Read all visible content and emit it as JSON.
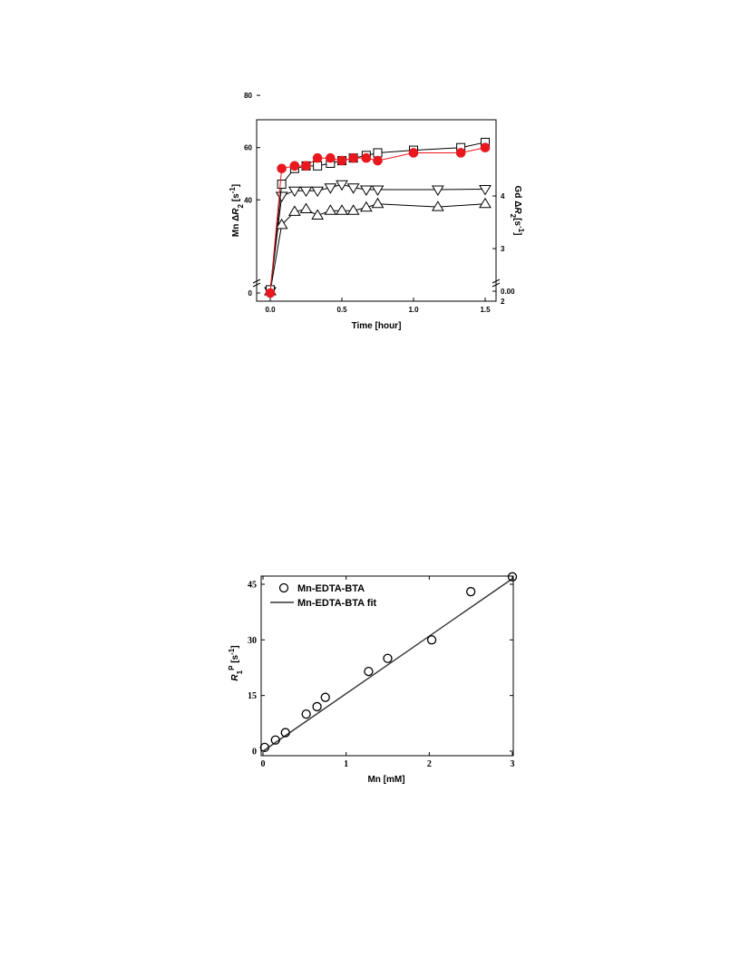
{
  "chart_data": [
    {
      "type": "line",
      "xlabel": "Time [hour]",
      "ylabel": "Mn ΔR2 [s-1]",
      "ylabel_parts": [
        "Mn Δ",
        "R",
        "2",
        " [s",
        "-1",
        "]"
      ],
      "y2label": "Gd ΔR2 [s-1]",
      "y2label_parts": [
        "Gd Δ",
        "R",
        "2",
        "[s",
        "-1",
        "]"
      ],
      "x_ticks": [
        "0.0",
        "0.5",
        "1.0",
        "1.5"
      ],
      "y_ticks": [
        "0",
        "40",
        "60",
        "80"
      ],
      "y2_ticks": [
        "0.00",
        "2",
        "3",
        "4"
      ],
      "xlim": [
        -0.1,
        1.55
      ],
      "ylim": [
        0,
        90
      ],
      "y_break": true,
      "y2lim": [
        0,
        4.5
      ],
      "y2_break": true,
      "series": [
        {
          "marker": "triangle-down",
          "axis": "y2",
          "color": "#000000",
          "x": [
            0,
            0.08,
            0.17,
            0.25,
            0.33,
            0.42,
            0.5,
            0.58,
            0.67,
            0.75,
            1.17,
            1.5
          ],
          "y": [
            0.0,
            4.0,
            4.1,
            4.1,
            4.1,
            4.16,
            4.22,
            4.16,
            4.12,
            4.12,
            4.12,
            4.13
          ]
        },
        {
          "marker": "triangle-up",
          "axis": "y2",
          "color": "#000000",
          "x": [
            0,
            0.08,
            0.17,
            0.25,
            0.33,
            0.42,
            0.5,
            0.58,
            0.67,
            0.75,
            1.17,
            1.5
          ],
          "y": [
            0.0,
            3.45,
            3.7,
            3.75,
            3.63,
            3.72,
            3.72,
            3.72,
            3.78,
            3.85,
            3.79,
            3.85
          ]
        },
        {
          "marker": "square",
          "axis": "y",
          "color": "#000000",
          "x": [
            0,
            0.08,
            0.17,
            0.25,
            0.33,
            0.42,
            0.5,
            0.58,
            0.67,
            0.75,
            1.0,
            1.33,
            1.5
          ],
          "y": [
            2,
            46,
            52,
            53,
            53,
            54,
            55,
            56,
            57,
            58,
            59,
            60,
            62
          ]
        },
        {
          "marker": "circle-filled",
          "axis": "y",
          "color": "#e8181e",
          "x": [
            0,
            0.08,
            0.17,
            0.25,
            0.33,
            0.42,
            0.5,
            0.58,
            0.67,
            0.75,
            1.0,
            1.33,
            1.5
          ],
          "y": [
            0,
            52,
            53,
            53,
            56,
            56,
            55,
            56,
            56,
            55,
            58,
            58,
            60
          ]
        }
      ]
    },
    {
      "type": "scatter",
      "xlabel": "Mn [mM]",
      "ylabel": "R1P [s-1]",
      "ylabel_parts": [
        "R",
        "1",
        "P",
        " [s",
        "-1",
        "]"
      ],
      "x_ticks": [
        "0",
        "1",
        "2",
        "3"
      ],
      "y_ticks": [
        "0",
        "15",
        "30",
        "45"
      ],
      "xlim": [
        0,
        3
      ],
      "ylim": [
        0,
        47
      ],
      "legend_loc": "top-left",
      "series": [
        {
          "name": "Mn-EDTA-BTA",
          "marker": "circle-open",
          "x": [
            0.02,
            0.15,
            0.27,
            0.52,
            0.65,
            0.75,
            1.27,
            1.5,
            2.03,
            2.5,
            3.0
          ],
          "y": [
            1,
            3,
            5,
            10,
            12,
            14.5,
            21.5,
            25,
            30,
            43,
            47
          ]
        },
        {
          "name": "Mn-EDTA-BTA fit",
          "line": "solid",
          "x": [
            0,
            3
          ],
          "y": [
            0,
            46.5
          ]
        }
      ]
    }
  ]
}
